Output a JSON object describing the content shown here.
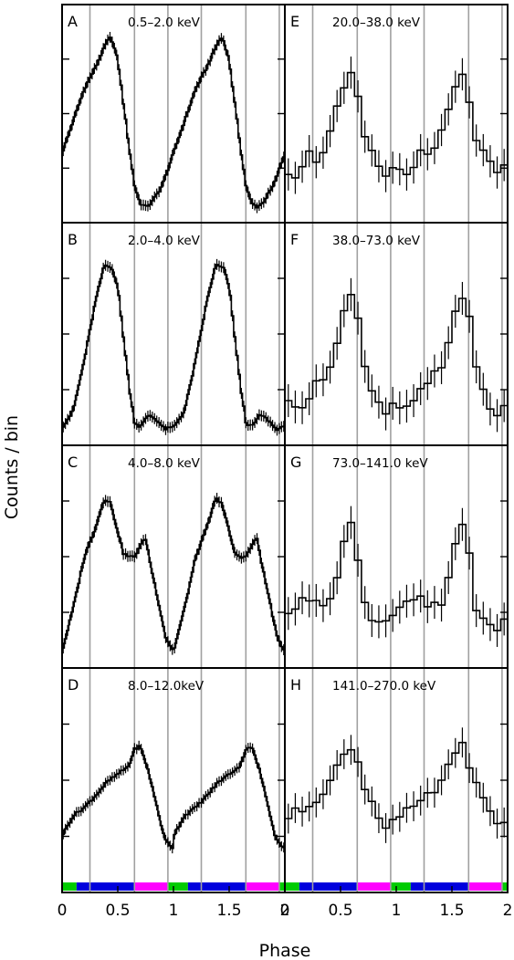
{
  "chart_data": {
    "type": "line",
    "xlabel": "Phase",
    "ylabel": "Counts / bin",
    "xlim": [
      0,
      2
    ],
    "x_ticks": [
      "0",
      "0.5",
      "1",
      "1.5",
      "2"
    ],
    "x_ticks_right": [
      "0",
      "0.5",
      "1",
      "1.5",
      "2"
    ],
    "phase_gridlines": [
      0.25,
      0.65,
      0.95,
      1.25,
      1.65,
      1.95
    ],
    "phase_band_colors": {
      "green": "#00cc00",
      "blue": "#0000dd",
      "magenta": "#ff00ff"
    },
    "phase_bands": [
      {
        "from": 0.0,
        "to": 0.13,
        "color": "green"
      },
      {
        "from": 0.13,
        "to": 0.65,
        "color": "blue"
      },
      {
        "from": 0.65,
        "to": 0.95,
        "color": "magenta"
      },
      {
        "from": 0.95,
        "to": 1.13,
        "color": "green"
      },
      {
        "from": 1.13,
        "to": 1.65,
        "color": "blue"
      },
      {
        "from": 1.65,
        "to": 1.95,
        "color": "magenta"
      },
      {
        "from": 1.95,
        "to": 2.0,
        "color": "green"
      }
    ],
    "panels": [
      {
        "tag": "A",
        "energy": "0.5–2.0 keV",
        "column": 0,
        "row": 0,
        "profile": [
          [
            0.0,
            0.34
          ],
          [
            0.1,
            0.52
          ],
          [
            0.2,
            0.7
          ],
          [
            0.3,
            0.82
          ],
          [
            0.4,
            0.96
          ],
          [
            0.44,
            0.99
          ],
          [
            0.5,
            0.86
          ],
          [
            0.55,
            0.62
          ],
          [
            0.6,
            0.38
          ],
          [
            0.65,
            0.16
          ],
          [
            0.7,
            0.06
          ],
          [
            0.75,
            0.04
          ],
          [
            0.8,
            0.06
          ],
          [
            0.9,
            0.16
          ],
          [
            1.0,
            0.34
          ]
        ]
      },
      {
        "tag": "B",
        "energy": "2.0–4.0 keV",
        "column": 0,
        "row": 1,
        "profile": [
          [
            0.0,
            0.05
          ],
          [
            0.1,
            0.14
          ],
          [
            0.2,
            0.42
          ],
          [
            0.3,
            0.74
          ],
          [
            0.38,
            0.94
          ],
          [
            0.45,
            0.92
          ],
          [
            0.5,
            0.82
          ],
          [
            0.55,
            0.55
          ],
          [
            0.6,
            0.28
          ],
          [
            0.65,
            0.08
          ],
          [
            0.7,
            0.05
          ],
          [
            0.78,
            0.12
          ],
          [
            0.85,
            0.09
          ],
          [
            0.92,
            0.04
          ],
          [
            1.0,
            0.05
          ]
        ]
      },
      {
        "tag": "C",
        "energy": "4.0–8.0 keV",
        "column": 0,
        "row": 2,
        "profile": [
          [
            0.0,
            0.04
          ],
          [
            0.1,
            0.28
          ],
          [
            0.2,
            0.56
          ],
          [
            0.3,
            0.72
          ],
          [
            0.38,
            0.88
          ],
          [
            0.43,
            0.86
          ],
          [
            0.5,
            0.7
          ],
          [
            0.55,
            0.58
          ],
          [
            0.6,
            0.56
          ],
          [
            0.65,
            0.56
          ],
          [
            0.7,
            0.62
          ],
          [
            0.75,
            0.66
          ],
          [
            0.8,
            0.5
          ],
          [
            0.87,
            0.3
          ],
          [
            0.93,
            0.12
          ],
          [
            1.0,
            0.04
          ]
        ]
      },
      {
        "tag": "D",
        "energy": "8.0–12.0keV",
        "column": 0,
        "row": 3,
        "profile": [
          [
            0.0,
            0.18
          ],
          [
            0.1,
            0.3
          ],
          [
            0.2,
            0.35
          ],
          [
            0.3,
            0.42
          ],
          [
            0.4,
            0.5
          ],
          [
            0.5,
            0.55
          ],
          [
            0.6,
            0.6
          ],
          [
            0.65,
            0.7
          ],
          [
            0.7,
            0.72
          ],
          [
            0.77,
            0.58
          ],
          [
            0.85,
            0.36
          ],
          [
            0.92,
            0.16
          ],
          [
            1.0,
            0.1
          ]
        ]
      },
      {
        "tag": "E",
        "energy": "20.0–38.0 keV",
        "column": 1,
        "row": 0,
        "profile": [
          [
            0.0,
            0.26
          ],
          [
            0.1,
            0.22
          ],
          [
            0.2,
            0.34
          ],
          [
            0.3,
            0.3
          ],
          [
            0.4,
            0.44
          ],
          [
            0.5,
            0.64
          ],
          [
            0.58,
            0.78
          ],
          [
            0.64,
            0.7
          ],
          [
            0.7,
            0.46
          ],
          [
            0.8,
            0.3
          ],
          [
            0.9,
            0.22
          ],
          [
            1.0,
            0.26
          ]
        ]
      },
      {
        "tag": "F",
        "energy": "38.0–73.0 keV",
        "column": 1,
        "row": 1,
        "profile": [
          [
            0.0,
            0.18
          ],
          [
            0.1,
            0.14
          ],
          [
            0.2,
            0.22
          ],
          [
            0.3,
            0.3
          ],
          [
            0.4,
            0.38
          ],
          [
            0.5,
            0.6
          ],
          [
            0.58,
            0.8
          ],
          [
            0.64,
            0.72
          ],
          [
            0.7,
            0.4
          ],
          [
            0.8,
            0.2
          ],
          [
            0.9,
            0.12
          ],
          [
            1.0,
            0.18
          ]
        ]
      },
      {
        "tag": "G",
        "energy": "73.0–141.0 keV",
        "column": 1,
        "row": 2,
        "profile": [
          [
            0.0,
            0.26
          ],
          [
            0.1,
            0.3
          ],
          [
            0.2,
            0.32
          ],
          [
            0.3,
            0.3
          ],
          [
            0.4,
            0.3
          ],
          [
            0.5,
            0.55
          ],
          [
            0.58,
            0.74
          ],
          [
            0.64,
            0.66
          ],
          [
            0.7,
            0.3
          ],
          [
            0.8,
            0.22
          ],
          [
            0.9,
            0.18
          ],
          [
            1.0,
            0.26
          ]
        ]
      },
      {
        "tag": "H",
        "energy": "141.0–270.0 keV",
        "column": 1,
        "row": 3,
        "profile": [
          [
            0.0,
            0.28
          ],
          [
            0.1,
            0.32
          ],
          [
            0.2,
            0.36
          ],
          [
            0.3,
            0.42
          ],
          [
            0.4,
            0.5
          ],
          [
            0.5,
            0.62
          ],
          [
            0.58,
            0.74
          ],
          [
            0.64,
            0.66
          ],
          [
            0.7,
            0.5
          ],
          [
            0.8,
            0.36
          ],
          [
            0.9,
            0.24
          ],
          [
            1.0,
            0.28
          ]
        ]
      }
    ]
  }
}
